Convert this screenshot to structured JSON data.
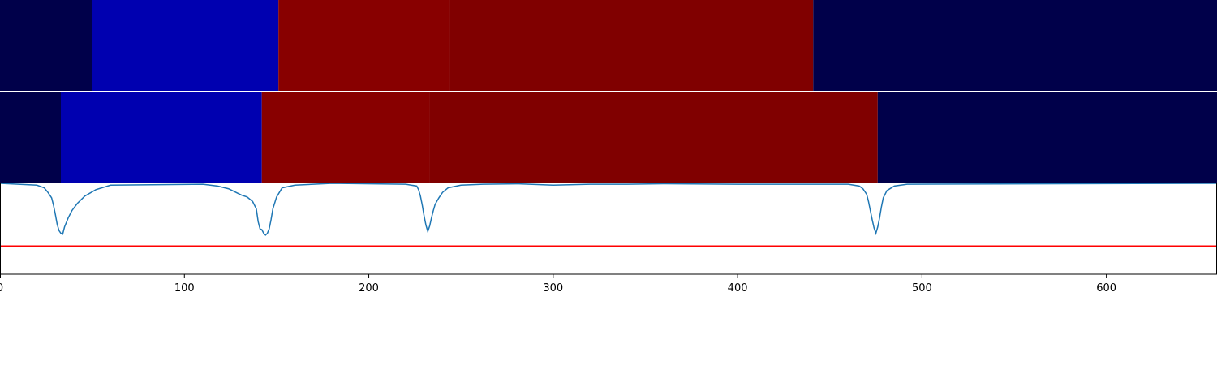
{
  "chart_data": [
    {
      "type": "heatmap",
      "panel": "segmentation-a",
      "colorscale": "seismic",
      "segments": [
        {
          "start": 0,
          "end": 50,
          "color": "#00004a"
        },
        {
          "start": 50,
          "end": 151,
          "color": "#0000b0"
        },
        {
          "start": 151,
          "end": 244,
          "color": "#880000"
        },
        {
          "start": 244,
          "end": 441,
          "color": "#800000"
        },
        {
          "start": 441,
          "end": 660,
          "color": "#00004a"
        }
      ]
    },
    {
      "type": "heatmap",
      "panel": "segmentation-b",
      "colorscale": "seismic",
      "segments": [
        {
          "start": 0,
          "end": 33,
          "color": "#00004a"
        },
        {
          "start": 33,
          "end": 142,
          "color": "#0000b0"
        },
        {
          "start": 142,
          "end": 233,
          "color": "#880000"
        },
        {
          "start": 233,
          "end": 476,
          "color": "#800000"
        },
        {
          "start": 476,
          "end": 660,
          "color": "#00004a"
        }
      ]
    },
    {
      "type": "line",
      "panel": "boundary-scores",
      "xlim": [
        0,
        660
      ],
      "ylim": [
        0,
        1
      ],
      "series": [
        {
          "color": "#1f77b4",
          "x": [
            0,
            20,
            24,
            26,
            28,
            29,
            30,
            31,
            32,
            33,
            34,
            35,
            37,
            39,
            42,
            46,
            52,
            60,
            110,
            118,
            124,
            128,
            131,
            134,
            137,
            139,
            140,
            141,
            142,
            143,
            144,
            145,
            146,
            147,
            148,
            150,
            153,
            160,
            170,
            180,
            220,
            226,
            227,
            228,
            229,
            230,
            231,
            232,
            233,
            234,
            235,
            236,
            238,
            240,
            243,
            250,
            262,
            280,
            300,
            320,
            340,
            360,
            400,
            430,
            460,
            466,
            468,
            470,
            471,
            472,
            473,
            474,
            475,
            476,
            477,
            478,
            479,
            481,
            485,
            492,
            660
          ],
          "y": [
            1.0,
            0.98,
            0.95,
            0.9,
            0.84,
            0.76,
            0.66,
            0.55,
            0.48,
            0.45,
            0.44,
            0.52,
            0.62,
            0.7,
            0.78,
            0.86,
            0.93,
            0.98,
            0.99,
            0.97,
            0.94,
            0.9,
            0.87,
            0.85,
            0.8,
            0.72,
            0.58,
            0.5,
            0.49,
            0.45,
            0.43,
            0.45,
            0.5,
            0.6,
            0.72,
            0.85,
            0.95,
            0.98,
            0.99,
            1.0,
            0.99,
            0.97,
            0.93,
            0.86,
            0.76,
            0.64,
            0.54,
            0.47,
            0.53,
            0.62,
            0.7,
            0.77,
            0.84,
            0.9,
            0.95,
            0.98,
            0.99,
            0.995,
            0.98,
            0.99,
            0.99,
            0.995,
            0.99,
            0.99,
            0.99,
            0.97,
            0.94,
            0.88,
            0.8,
            0.7,
            0.6,
            0.51,
            0.45,
            0.52,
            0.62,
            0.74,
            0.84,
            0.92,
            0.97,
            0.99,
            1.0
          ]
        },
        {
          "color": "#ff0000",
          "x": [
            0,
            660
          ],
          "y": [
            0.31,
            0.31
          ]
        }
      ]
    }
  ],
  "x_axis": {
    "xlim": [
      0,
      660
    ],
    "ticks": [
      0,
      100,
      200,
      300,
      400,
      500,
      600
    ],
    "tick_labels": [
      "0",
      "100",
      "200",
      "300",
      "400",
      "500",
      "600"
    ]
  }
}
